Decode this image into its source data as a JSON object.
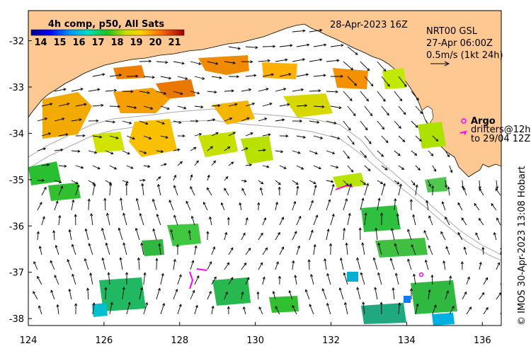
{
  "header": {
    "timestamp": "28-Apr-2023 16Z",
    "current_source": "NRT00 GSL",
    "current_time": "27-Apr 06:00Z",
    "arrow_scale": "0.5m/s (1kt 24h)"
  },
  "legend": {
    "title": "4h comp, p50, All Sats",
    "ticks": [
      "14",
      "15",
      "16",
      "17",
      "18",
      "19",
      "20",
      "21"
    ],
    "range": [
      13.5,
      21.5
    ]
  },
  "argo": {
    "label": "Argo",
    "drifters": "drifters@12h",
    "until": "to 29/04 12Z"
  },
  "credit": "© IMOS 30-Apr-2023 13:08 Hobart",
  "axes": {
    "x_ticks": [
      "124",
      "126",
      "128",
      "130",
      "132",
      "134",
      "136"
    ],
    "y_ticks": [
      "-32",
      "-33",
      "-34",
      "-35",
      "-36",
      "-37",
      "-38"
    ],
    "lon_range": [
      124,
      136.5
    ],
    "lat_range": [
      -38.15,
      -31.35
    ]
  },
  "colors": {
    "land": "#fdc891",
    "argo": "#ff00ff",
    "bathymetry": "#aaaaaa"
  }
}
